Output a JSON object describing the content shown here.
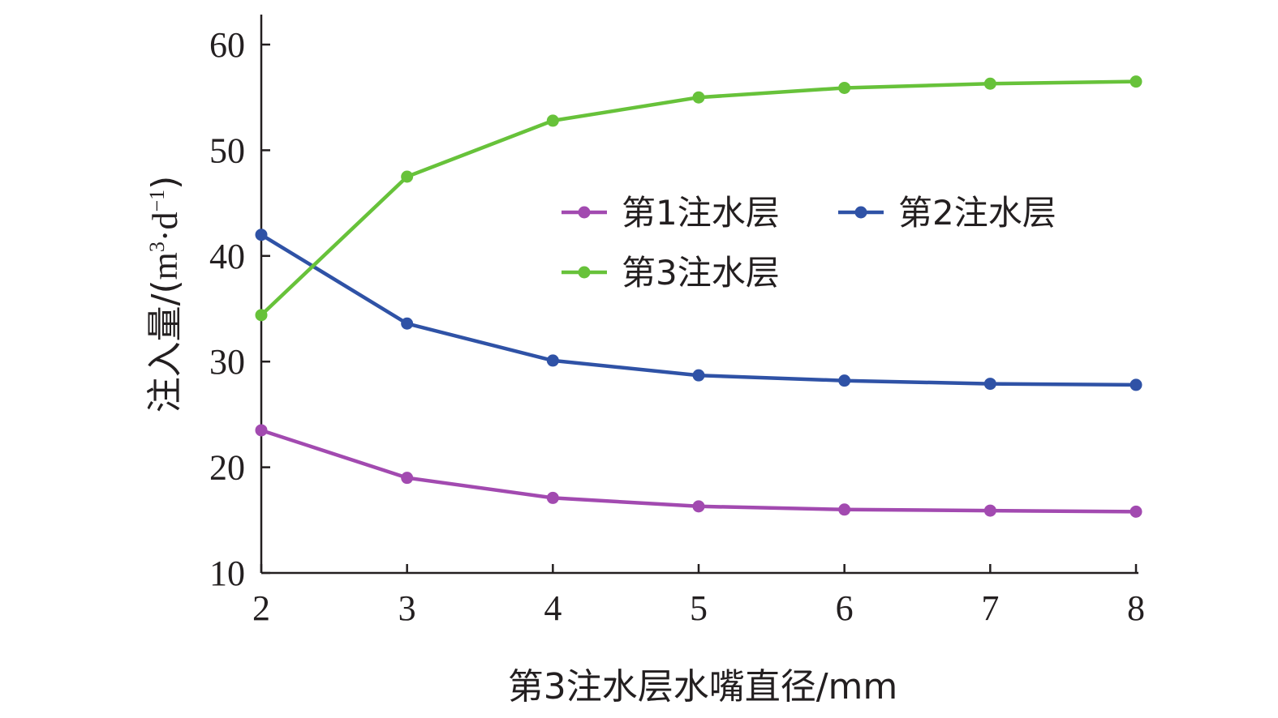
{
  "chart_data": {
    "type": "line",
    "title": "",
    "xlabel": "第3注水层水嘴直径/mm",
    "ylabel_main": "注入量/",
    "ylabel_unit": {
      "open": "(",
      "m": "m",
      "sup3": "3",
      "dot": "·d",
      "supneg1": "−1",
      "close": ")"
    },
    "x": [
      2,
      3,
      4,
      5,
      6,
      7,
      8
    ],
    "xlim": [
      2,
      8
    ],
    "ylim": [
      10,
      60
    ],
    "xticks": [
      2,
      3,
      4,
      5,
      6,
      7,
      8
    ],
    "yticks": [
      10,
      20,
      30,
      40,
      50,
      60
    ],
    "grid": false,
    "legend_position": "center-right",
    "series": [
      {
        "name": "第1注水层",
        "color": "#a24ab0",
        "values": [
          23.5,
          19.0,
          17.1,
          16.3,
          16.0,
          15.9,
          15.8
        ]
      },
      {
        "name": "第2注水层",
        "color": "#2f52a6",
        "values": [
          42.0,
          33.6,
          30.1,
          28.7,
          28.2,
          27.9,
          27.8
        ]
      },
      {
        "name": "第3注水层",
        "color": "#67c23a",
        "values": [
          34.4,
          47.5,
          52.8,
          55.0,
          55.9,
          56.3,
          56.5
        ]
      }
    ]
  }
}
